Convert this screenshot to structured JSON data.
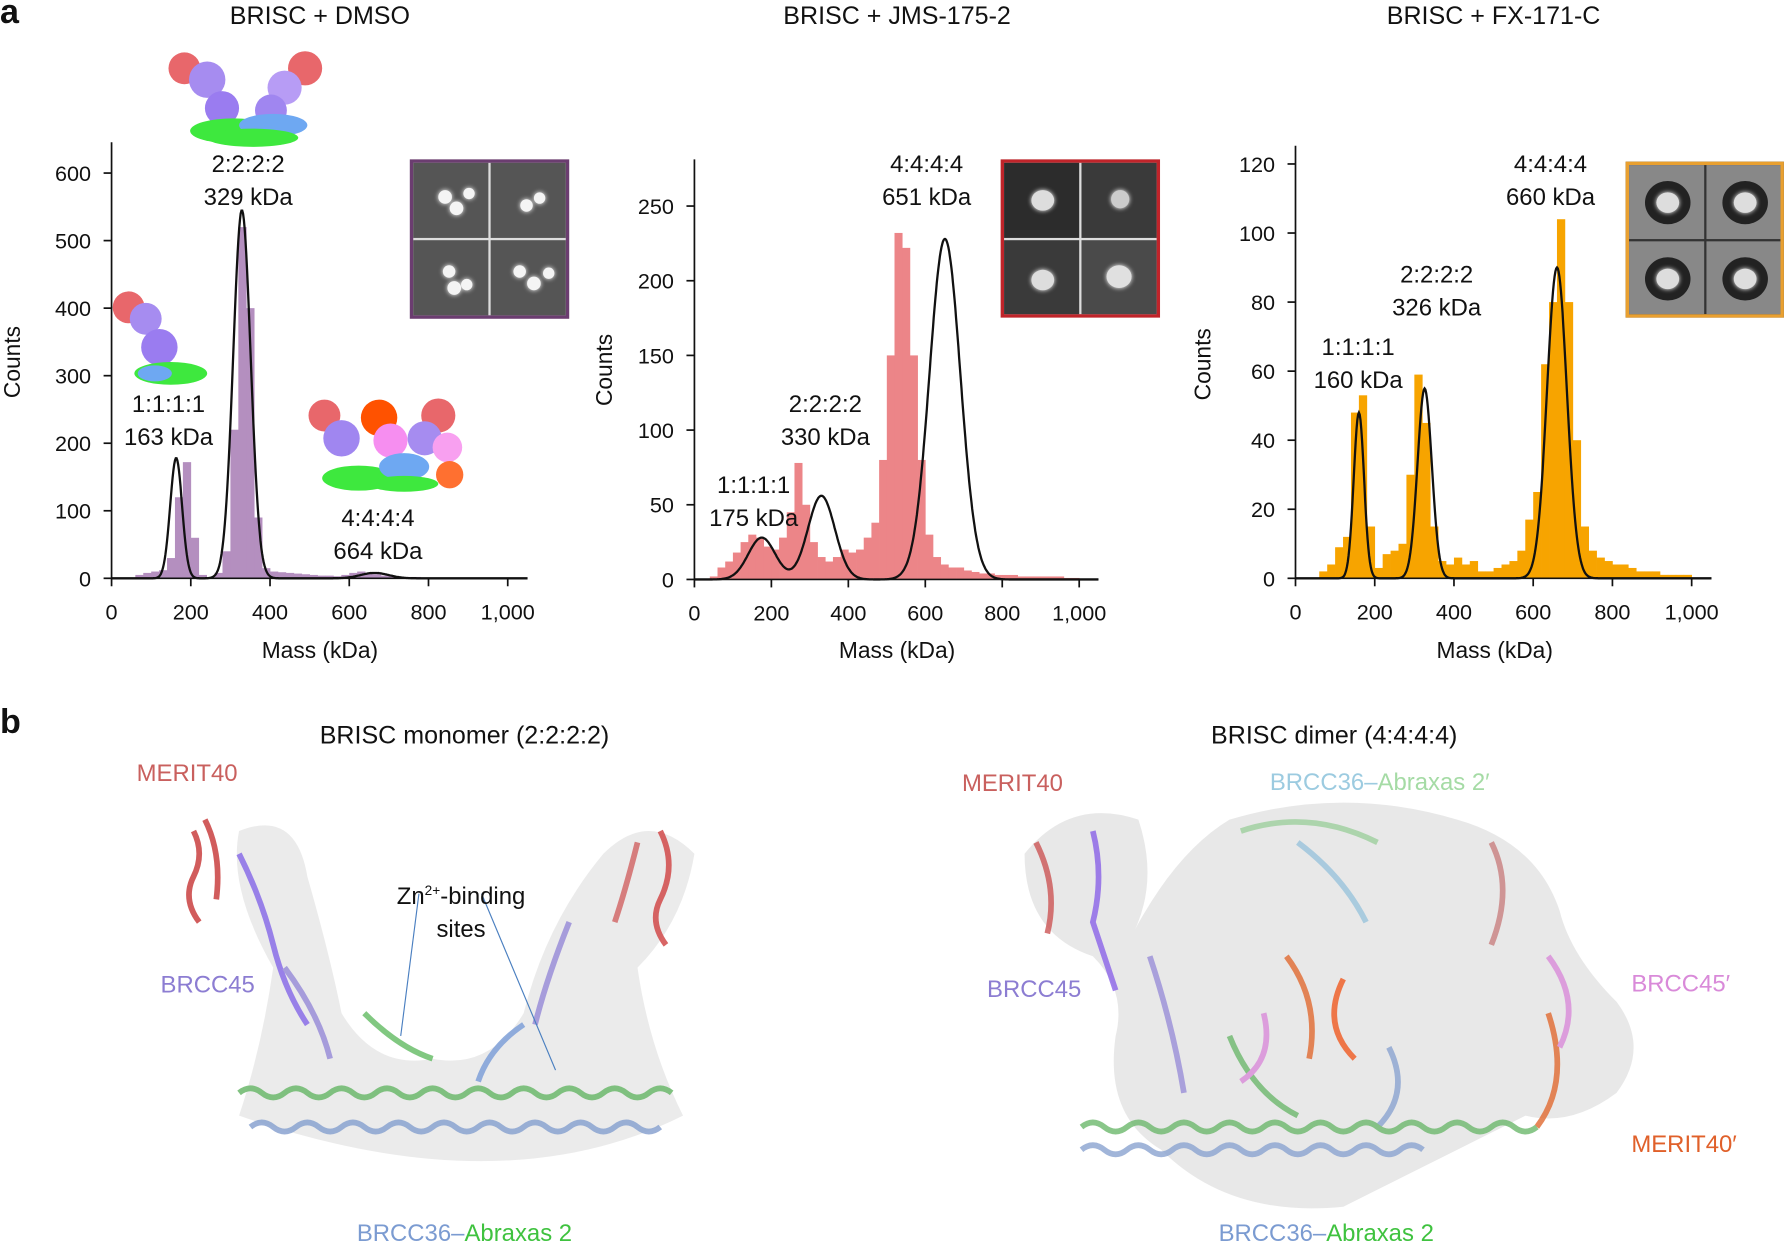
{
  "panel_a": {
    "letter": "a",
    "x_label": "Mass (kDa)",
    "y_label": "Counts"
  },
  "panel_b": {
    "letter": "b",
    "monomer": {
      "title": "BRISC monomer (2:2:2:2)",
      "merit40": "MERIT40",
      "brcc45": "BRCC45",
      "zn_line1": "Zn",
      "zn_sup": "2+",
      "zn_line1b": "-binding",
      "zn_line2": "sites",
      "brcc36": "BRCC36",
      "dash": "–",
      "abraxas": "Abraxas 2"
    },
    "dimer": {
      "title": "BRISC dimer (4:4:4:4)",
      "merit40": "MERIT40",
      "brcc45": "BRCC45",
      "brcc45p": "BRCC45′",
      "merit40p": "MERIT40′",
      "top_brcc36": "BRCC36",
      "top_dash": "–",
      "top_abraxas": "Abraxas 2′",
      "brcc36": "BRCC36",
      "dash": "–",
      "abraxas": "Abraxas 2"
    }
  },
  "colors": {
    "dmso": "#b48fbf",
    "jms": "#ec8588",
    "fx": "#f7a400",
    "merit40": "#c9605e",
    "brcc45": "#8c7dd2",
    "brcc36": "#7b9bd1",
    "abraxas": "#3fc23f",
    "brcc45p": "#d98ad9",
    "merit40p": "#e0602a"
  },
  "chart_data": [
    {
      "type": "bar",
      "title": "BRISC + DMSO",
      "xlabel": "Mass (kDa)",
      "ylabel": "Counts",
      "xlim": [
        0,
        1050
      ],
      "ylim": [
        0,
        640
      ],
      "xticks": [
        "0",
        "200",
        "400",
        "600",
        "800",
        "1,000"
      ],
      "yticks": [
        "0",
        "100",
        "200",
        "300",
        "400",
        "500",
        "600"
      ],
      "ytick_values": [
        0,
        100,
        200,
        300,
        400,
        500,
        600
      ],
      "bin_width_kDa": 20,
      "histogram": [
        0,
        0,
        0,
        5,
        8,
        10,
        12,
        30,
        120,
        172,
        60,
        5,
        0,
        8,
        40,
        220,
        520,
        400,
        90,
        15,
        10,
        9,
        8,
        7,
        6,
        5,
        4,
        4,
        3,
        5,
        8,
        10,
        8,
        6,
        4,
        3,
        2,
        2,
        2,
        1,
        1,
        1,
        1,
        1,
        0,
        0,
        0,
        0,
        0,
        0
      ],
      "fit_peaks": [
        {
          "label": "1:1:1:1",
          "mass": "163 kDa",
          "center": 163,
          "height": 178,
          "sigma": 15
        },
        {
          "label": "2:2:2:2",
          "mass": "329 kDa",
          "center": 329,
          "height": 545,
          "sigma": 22
        },
        {
          "label": "4:4:4:4",
          "mass": "664 kDa",
          "center": 664,
          "height": 8,
          "sigma": 35
        }
      ]
    },
    {
      "type": "bar",
      "title": "BRISC + JMS-175-2",
      "xlabel": "Mass (kDa)",
      "ylabel": "Counts",
      "xlim": [
        0,
        1050
      ],
      "ylim": [
        0,
        280
      ],
      "xticks": [
        "0",
        "200",
        "400",
        "600",
        "800",
        "1,000"
      ],
      "yticks": [
        "0",
        "50",
        "100",
        "150",
        "200",
        "250"
      ],
      "ytick_values": [
        0,
        50,
        100,
        150,
        200,
        250
      ],
      "bin_width_kDa": 20,
      "histogram": [
        0,
        0,
        2,
        8,
        12,
        18,
        25,
        30,
        28,
        22,
        20,
        28,
        45,
        78,
        50,
        25,
        15,
        12,
        15,
        20,
        18,
        20,
        28,
        38,
        80,
        150,
        232,
        222,
        150,
        80,
        30,
        15,
        10,
        8,
        8,
        6,
        5,
        4,
        4,
        3,
        3,
        3,
        2,
        2,
        2,
        2,
        2,
        2,
        1,
        1
      ],
      "fit_peaks": [
        {
          "label": "1:1:1:1",
          "mass": "175 kDa",
          "center": 175,
          "height": 28,
          "sigma": 35
        },
        {
          "label": "2:2:2:2",
          "mass": "330 kDa",
          "center": 330,
          "height": 56,
          "sigma": 35
        },
        {
          "label": "4:4:4:4",
          "mass": "651 kDa",
          "center": 651,
          "height": 228,
          "sigma": 40
        }
      ]
    },
    {
      "type": "bar",
      "title": "BRISC + FX-171-C",
      "xlabel": "Mass (kDa)",
      "ylabel": "Counts",
      "xlim": [
        0,
        1050
      ],
      "ylim": [
        0,
        125
      ],
      "xticks": [
        "0",
        "200",
        "400",
        "600",
        "800",
        "1,000"
      ],
      "yticks": [
        "0",
        "20",
        "40",
        "60",
        "80",
        "100",
        "120"
      ],
      "ytick_values": [
        0,
        20,
        40,
        60,
        80,
        100,
        120
      ],
      "bin_width_kDa": 20,
      "histogram": [
        0,
        0,
        0,
        2,
        4,
        9,
        12,
        48,
        53,
        15,
        3,
        7,
        8,
        10,
        30,
        59,
        45,
        15,
        5,
        4,
        6,
        4,
        5,
        2,
        2,
        3,
        4,
        5,
        8,
        17,
        25,
        62,
        80,
        104,
        80,
        40,
        15,
        8,
        6,
        5,
        4,
        4,
        3,
        2,
        2,
        2,
        1,
        1,
        1,
        1
      ],
      "fit_peaks": [
        {
          "label": "1:1:1:1",
          "mass": "160 kDa",
          "center": 160,
          "height": 48,
          "sigma": 13
        },
        {
          "label": "2:2:2:2",
          "mass": "326 kDa",
          "center": 326,
          "height": 55,
          "sigma": 18
        },
        {
          "label": "4:4:4:4",
          "mass": "660 kDa",
          "center": 660,
          "height": 90,
          "sigma": 25
        }
      ]
    }
  ]
}
